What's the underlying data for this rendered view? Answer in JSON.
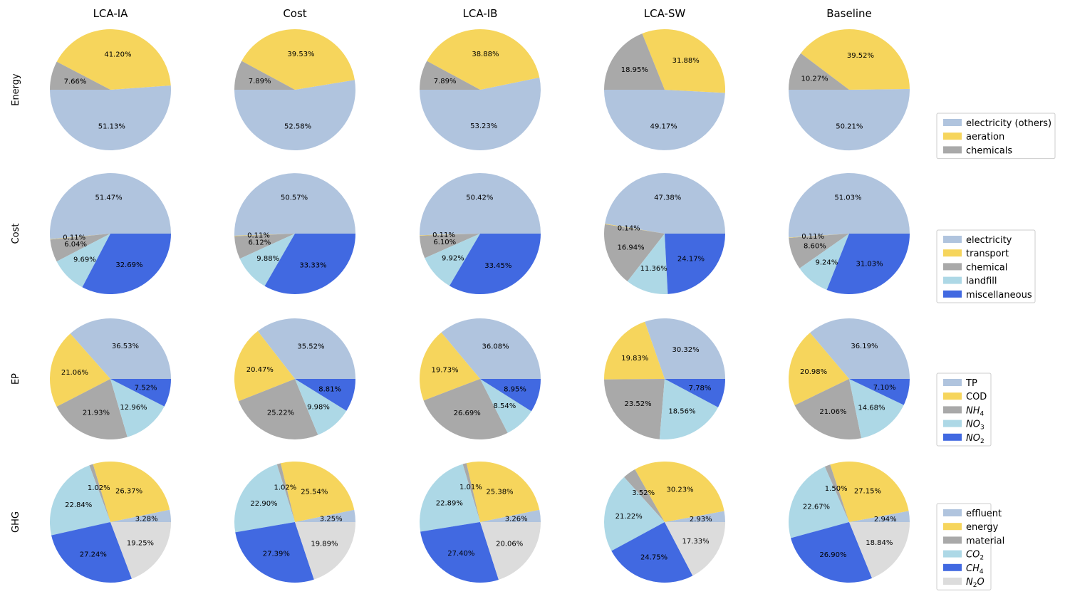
{
  "colors": {
    "lightsteelblue": "#b0c4de",
    "gold": "#f6d55c",
    "gray": "#a9a9a9",
    "lightblue": "#add8e6",
    "royalblue": "#4169e1",
    "lightgray": "#dcdcdc"
  },
  "chart_data": {
    "type": "pie",
    "columns": [
      "LCA-IA",
      "Cost",
      "LCA-IB",
      "LCA-SW",
      "Baseline"
    ],
    "rows": [
      {
        "name": "Energy",
        "start_angle": 180,
        "categories": [
          {
            "name": "electricity (others)",
            "sub": "",
            "color": "#b0c4de"
          },
          {
            "name": "aeration",
            "sub": "",
            "color": "#f6d55c"
          },
          {
            "name": "chemicals",
            "sub": "",
            "color": "#a9a9a9"
          }
        ],
        "values": [
          [
            51.13,
            41.2,
            7.66
          ],
          [
            52.58,
            39.53,
            7.89
          ],
          [
            53.23,
            38.88,
            7.89
          ],
          [
            49.17,
            31.88,
            18.95
          ],
          [
            50.21,
            39.52,
            10.27
          ]
        ],
        "labels": [
          [
            "51.13%",
            "41.20%",
            "7.66%"
          ],
          [
            "52.58%",
            "39.53%",
            "7.89%"
          ],
          [
            "53.23%",
            "38.88%",
            "7.89%"
          ],
          [
            "49.17%",
            "31.88%",
            "18.95%"
          ],
          [
            "50.21%",
            "39.52%",
            "10.27%"
          ]
        ]
      },
      {
        "name": "Cost",
        "start_angle": 0,
        "categories": [
          {
            "name": "electricity",
            "sub": "",
            "color": "#b0c4de"
          },
          {
            "name": "transport",
            "sub": "",
            "color": "#f6d55c"
          },
          {
            "name": "chemical",
            "sub": "",
            "color": "#a9a9a9"
          },
          {
            "name": "landfill",
            "sub": "",
            "color": "#add8e6"
          },
          {
            "name": "miscellaneous",
            "sub": "",
            "color": "#4169e1"
          }
        ],
        "values": [
          [
            51.47,
            0.11,
            6.04,
            9.69,
            32.69
          ],
          [
            50.57,
            0.11,
            6.12,
            9.88,
            33.33
          ],
          [
            50.42,
            0.11,
            6.1,
            9.92,
            33.45
          ],
          [
            47.38,
            0.14,
            16.94,
            11.36,
            24.17
          ],
          [
            51.03,
            0.11,
            8.6,
            9.24,
            31.03
          ]
        ],
        "labels": [
          [
            "51.47%",
            "0.11%",
            "6.04%",
            "9.69%",
            "32.69%"
          ],
          [
            "50.57%",
            "0.11%",
            "6.12%",
            "9.88%",
            "33.33%"
          ],
          [
            "50.42%",
            "0.11%",
            "6.10%",
            "9.92%",
            "33.45%"
          ],
          [
            "47.38%",
            "0.14%",
            "16.94%",
            "11.36%",
            "24.17%"
          ],
          [
            "51.03%",
            "0.11%",
            "8.60%",
            "9.24%",
            "31.03%"
          ]
        ]
      },
      {
        "name": "EP",
        "start_angle": 0,
        "categories": [
          {
            "name": "TP",
            "sub": "",
            "color": "#b0c4de"
          },
          {
            "name": "COD",
            "sub": "",
            "color": "#f6d55c"
          },
          {
            "name": "NH",
            "sub": "4",
            "color": "#a9a9a9"
          },
          {
            "name": "NO",
            "sub": "3",
            "color": "#add8e6"
          },
          {
            "name": "NO",
            "sub": "2",
            "color": "#4169e1"
          }
        ],
        "values": [
          [
            36.53,
            21.06,
            21.93,
            12.96,
            7.52
          ],
          [
            35.52,
            20.47,
            25.22,
            9.98,
            8.81
          ],
          [
            36.08,
            19.73,
            26.69,
            8.54,
            8.95
          ],
          [
            30.32,
            19.83,
            23.52,
            18.56,
            7.78
          ],
          [
            36.19,
            20.98,
            21.06,
            14.68,
            7.1
          ]
        ],
        "labels": [
          [
            "36.53%",
            "21.06%",
            "21.93%",
            "12.96%",
            "7.52%"
          ],
          [
            "35.52%",
            "20.47%",
            "25.22%",
            "9.98%",
            "8.81%"
          ],
          [
            "36.08%",
            "19.73%",
            "26.69%",
            "8.54%",
            "8.95%"
          ],
          [
            "30.32%",
            "19.83%",
            "23.52%",
            "18.56%",
            "7.78%"
          ],
          [
            "36.19%",
            "20.98%",
            "21.06%",
            "14.68%",
            "7.10%"
          ]
        ]
      },
      {
        "name": "GHG",
        "start_angle": 0,
        "categories": [
          {
            "name": "effluent",
            "sub": "",
            "color": "#b0c4de"
          },
          {
            "name": "energy",
            "sub": "",
            "color": "#f6d55c"
          },
          {
            "name": "material",
            "sub": "",
            "color": "#a9a9a9"
          },
          {
            "name": "CO",
            "sub": "2",
            "color": "#add8e6"
          },
          {
            "name": "CH",
            "sub": "4",
            "color": "#4169e1"
          },
          {
            "name": "N",
            "sub": "2",
            "suffix": "O",
            "color": "#dcdcdc"
          }
        ],
        "values": [
          [
            3.28,
            26.37,
            1.02,
            22.84,
            27.24,
            19.25
          ],
          [
            3.25,
            25.54,
            1.02,
            22.9,
            27.39,
            19.89
          ],
          [
            3.26,
            25.38,
            1.01,
            22.89,
            27.4,
            20.06
          ],
          [
            2.93,
            30.23,
            3.52,
            21.22,
            24.75,
            17.33
          ],
          [
            2.94,
            27.15,
            1.5,
            22.67,
            26.9,
            18.84
          ]
        ],
        "labels": [
          [
            "3.28%",
            "26.37%",
            "1.02%",
            "22.84%",
            "27.24%",
            "19.25%"
          ],
          [
            "3.25%",
            "25.54%",
            "1.02%",
            "22.90%",
            "27.39%",
            "19.89%"
          ],
          [
            "3.26%",
            "25.38%",
            "1.01%",
            "22.89%",
            "27.40%",
            "20.06%"
          ],
          [
            "2.93%",
            "30.23%",
            "3.52%",
            "21.22%",
            "24.75%",
            "17.33%"
          ],
          [
            "2.94%",
            "27.15%",
            "1.50%",
            "22.67%",
            "26.90%",
            "18.84%"
          ]
        ]
      }
    ],
    "legend_position": "right"
  }
}
